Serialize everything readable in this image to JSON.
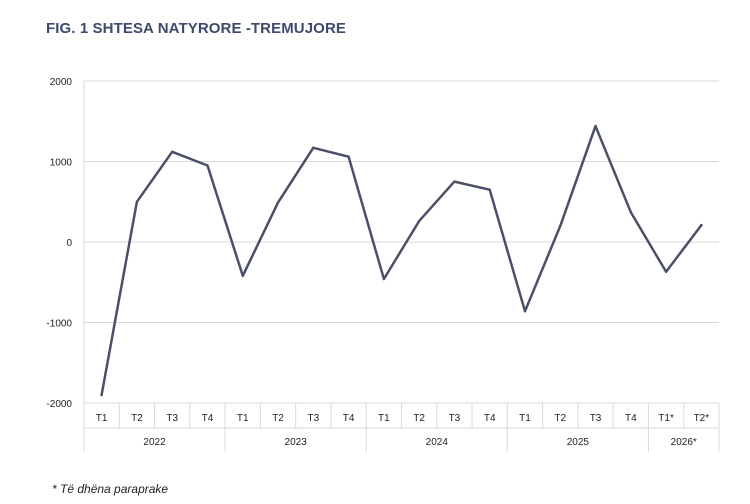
{
  "title": "FIG. 1 SHTESA NATYRORE -TREMUJORE",
  "footnote": "* Të dhëna paraprake",
  "colors": {
    "line": "#4a5068",
    "grid": "#d9d9d9",
    "title": "#3d4a6b"
  },
  "chart_data": {
    "type": "line",
    "title": "FIG. 1 SHTESA NATYRORE -TREMUJORE",
    "xlabel": "",
    "ylabel": "",
    "ylim": [
      -2000,
      2000
    ],
    "yticks": [
      2000,
      1000,
      0,
      -1000,
      -2000
    ],
    "grid": true,
    "categories": [
      "T1",
      "T2",
      "T3",
      "T4",
      "T1",
      "T2",
      "T3",
      "T4",
      "T1",
      "T2",
      "T3",
      "T4",
      "T1",
      "T2",
      "T3",
      "T4",
      "T1*",
      "T2*"
    ],
    "groups": [
      {
        "label": "2022",
        "count": 4
      },
      {
        "label": "2023",
        "count": 4
      },
      {
        "label": "2024",
        "count": 4
      },
      {
        "label": "2025",
        "count": 4
      },
      {
        "label": "2026*",
        "count": 2
      }
    ],
    "values": [
      -1900,
      500,
      1120,
      950,
      -420,
      490,
      1170,
      1060,
      -460,
      260,
      750,
      650,
      -860,
      200,
      1440,
      370,
      -370,
      210
    ]
  }
}
